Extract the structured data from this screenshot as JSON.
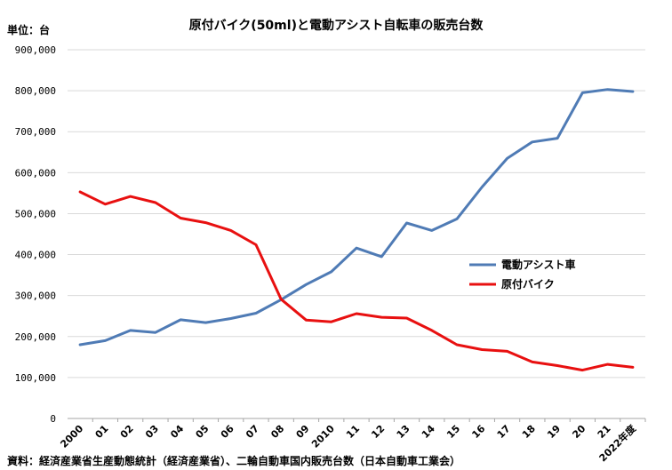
{
  "chart_data": {
    "type": "line",
    "title": "原付バイク(50ml)と電動アシスト自転車の販売台数",
    "ylabel": "単位：台",
    "xlabel": "",
    "source": "資料：経済産業省生産動態統計（経済産業省）、二輪自動車国内販売台数（日本自動車工業会）",
    "categories": [
      "2000",
      "01",
      "02",
      "03",
      "04",
      "05",
      "06",
      "07",
      "08",
      "09",
      "2010",
      "11",
      "12",
      "13",
      "14",
      "15",
      "16",
      "17",
      "18",
      "19",
      "20",
      "21",
      "2022年度"
    ],
    "ylim": [
      0,
      900000
    ],
    "ytick_values": [
      0,
      100000,
      200000,
      300000,
      400000,
      500000,
      600000,
      700000,
      800000,
      900000
    ],
    "ytick_labels": [
      "0",
      "100,000",
      "200,000",
      "300,000",
      "400,000",
      "500,000",
      "600,000",
      "700,000",
      "800,000",
      "900,000"
    ],
    "grid": true,
    "legend_position": "right",
    "series": [
      {
        "name": "電動アシスト車",
        "color": "#4f7bb5",
        "values": [
          180000,
          190000,
          215000,
          210000,
          241000,
          234000,
          244000,
          257000,
          290000,
          327000,
          358000,
          416000,
          395000,
          477000,
          459000,
          487000,
          565000,
          635000,
          675000,
          684000,
          795000,
          803000,
          798000
        ]
      },
      {
        "name": "原付バイク",
        "color": "#e81010",
        "values": [
          553000,
          523000,
          542000,
          527000,
          489000,
          478000,
          459000,
          424000,
          291000,
          240000,
          236000,
          256000,
          247000,
          245000,
          215000,
          180000,
          168000,
          164000,
          138000,
          129000,
          118000,
          132000,
          125000
        ]
      }
    ]
  }
}
